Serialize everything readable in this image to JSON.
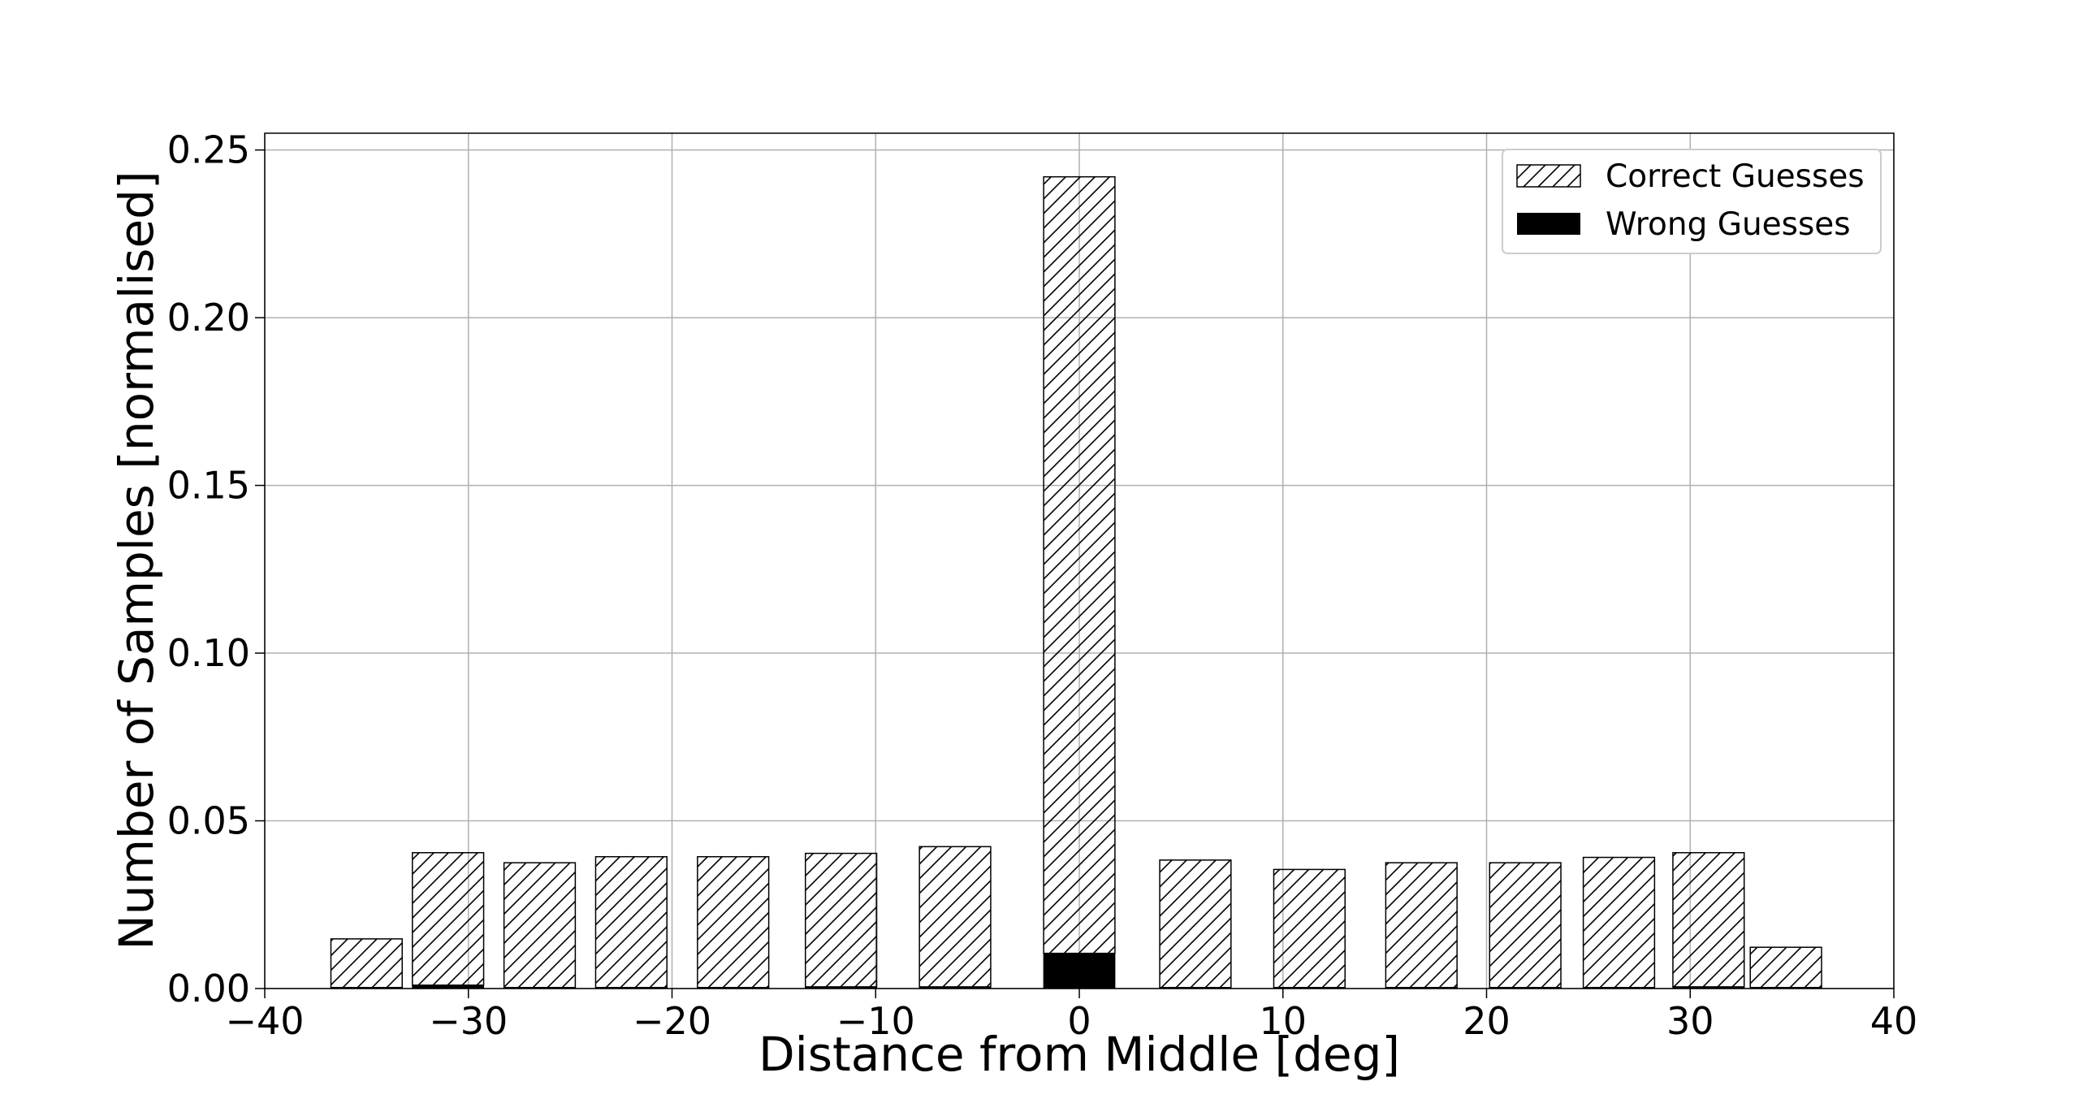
{
  "chart_data": {
    "type": "bar",
    "xlabel": "Distance from Middle [deg]",
    "ylabel": "Number of Samples [normalised]",
    "xlim": [
      -40,
      40
    ],
    "ylim": [
      0,
      0.255
    ],
    "xticks": [
      -40,
      -30,
      -20,
      -10,
      0,
      10,
      20,
      30,
      40
    ],
    "xtick_labels": [
      "−40",
      "−30",
      "−20",
      "−10",
      "0",
      "10",
      "20",
      "30",
      "40"
    ],
    "yticks": [
      0,
      0.05,
      0.1,
      0.15,
      0.2,
      0.25
    ],
    "ytick_labels": [
      "0.00",
      "0.05",
      "0.10",
      "0.15",
      "0.20",
      "0.25"
    ],
    "grid": true,
    "legend_position": "top-right",
    "bar_width": 3.5,
    "x": [
      -35,
      -31,
      -26.5,
      -22,
      -17,
      -11.7,
      -6.1,
      0,
      5.7,
      11.3,
      16.8,
      21.9,
      26.5,
      30.9,
      34.7
    ],
    "series": [
      {
        "name": "Correct Guesses",
        "style": "hatched",
        "values": [
          0.0145,
          0.0395,
          0.0372,
          0.039,
          0.039,
          0.0398,
          0.0418,
          0.2315,
          0.038,
          0.0352,
          0.0372,
          0.0372,
          0.0388,
          0.04,
          0.012
        ]
      },
      {
        "name": "Wrong Guesses",
        "style": "solid",
        "color": "#000000",
        "values": [
          0.0003,
          0.001,
          0.0003,
          0.0003,
          0.0003,
          0.0005,
          0.0005,
          0.0105,
          0.0003,
          0.0003,
          0.0003,
          0.0003,
          0.0003,
          0.0005,
          0.0003
        ]
      }
    ]
  }
}
